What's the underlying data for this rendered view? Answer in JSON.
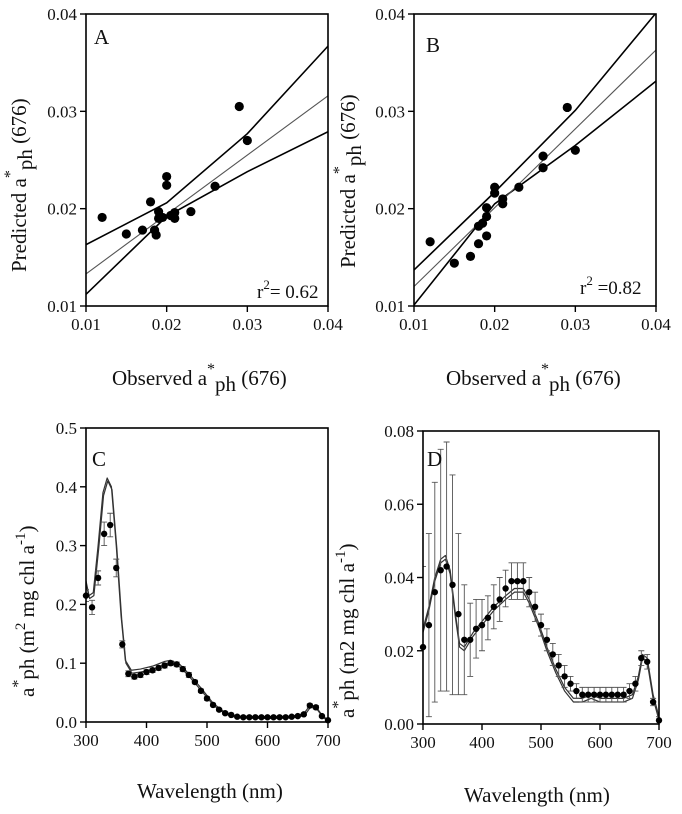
{
  "figure": {
    "colors": {
      "ink": "#000000",
      "regression": "#000000",
      "ci": "#000000",
      "fit_center": "#555555",
      "model_curve": "#333333"
    }
  },
  "chart_data": [
    {
      "panel": "A",
      "type": "scatter",
      "xlabel_parts": [
        "Observed a",
        "*",
        "ph",
        " (676)"
      ],
      "ylabel_parts": [
        "Predicted a",
        "*",
        "ph",
        " (676)"
      ],
      "xlim": [
        0.01,
        0.04
      ],
      "ylim": [
        0.01,
        0.04
      ],
      "x_ticks": [
        "0.01",
        "0.02",
        "0.03",
        "0.04"
      ],
      "y_ticks": [
        "0.01",
        "0.02",
        "0.03",
        "0.04"
      ],
      "annotation": {
        "base": "r",
        "sup": "2",
        "text": "= 0.62"
      },
      "points": [
        [
          0.012,
          0.0191
        ],
        [
          0.015,
          0.0174
        ],
        [
          0.017,
          0.0178
        ],
        [
          0.018,
          0.0207
        ],
        [
          0.0185,
          0.0178
        ],
        [
          0.0187,
          0.0173
        ],
        [
          0.019,
          0.0197
        ],
        [
          0.019,
          0.019
        ],
        [
          0.0195,
          0.0191
        ],
        [
          0.02,
          0.0224
        ],
        [
          0.02,
          0.0233
        ],
        [
          0.0205,
          0.0193
        ],
        [
          0.021,
          0.019
        ],
        [
          0.021,
          0.0196
        ],
        [
          0.023,
          0.0197
        ],
        [
          0.026,
          0.0223
        ],
        [
          0.029,
          0.0305
        ],
        [
          0.03,
          0.027
        ]
      ],
      "fit": {
        "slope": 0.61,
        "intercept": 0.0072
      },
      "ci_upper": [
        [
          0.01,
          0.0163
        ],
        [
          0.02,
          0.0206
        ],
        [
          0.03,
          0.0277
        ],
        [
          0.04,
          0.0367
        ]
      ],
      "ci_lower": [
        [
          0.01,
          0.0112
        ],
        [
          0.02,
          0.0192
        ],
        [
          0.03,
          0.0238
        ],
        [
          0.04,
          0.0279
        ]
      ]
    },
    {
      "panel": "B",
      "type": "scatter",
      "xlabel_parts": [
        "Observed a",
        "*",
        "ph",
        " (676)"
      ],
      "ylabel_parts": [
        "Predicted a",
        "*",
        "ph",
        " (676)"
      ],
      "xlim": [
        0.01,
        0.04
      ],
      "ylim": [
        0.01,
        0.04
      ],
      "x_ticks": [
        "0.01",
        "0.02",
        "0.03",
        "0.04"
      ],
      "y_ticks": [
        "0.01",
        "0.02",
        "0.03",
        "0.04"
      ],
      "annotation": {
        "base": "r",
        "sup": "2",
        "text": " =0.82"
      },
      "points": [
        [
          0.012,
          0.0166
        ],
        [
          0.015,
          0.0144
        ],
        [
          0.017,
          0.0151
        ],
        [
          0.018,
          0.0164
        ],
        [
          0.018,
          0.0182
        ],
        [
          0.0185,
          0.0185
        ],
        [
          0.019,
          0.0172
        ],
        [
          0.019,
          0.0192
        ],
        [
          0.019,
          0.0201
        ],
        [
          0.02,
          0.0216
        ],
        [
          0.02,
          0.0222
        ],
        [
          0.021,
          0.0205
        ],
        [
          0.021,
          0.021
        ],
        [
          0.023,
          0.0222
        ],
        [
          0.026,
          0.0242
        ],
        [
          0.026,
          0.0254
        ],
        [
          0.029,
          0.0304
        ],
        [
          0.03,
          0.026
        ]
      ],
      "fit": {
        "slope": 0.81,
        "intercept": 0.0039
      },
      "ci_upper": [
        [
          0.01,
          0.0137
        ],
        [
          0.02,
          0.0217
        ],
        [
          0.03,
          0.0301
        ],
        [
          0.04,
          0.0401
        ]
      ],
      "ci_lower": [
        [
          0.01,
          0.0101
        ],
        [
          0.02,
          0.0205
        ],
        [
          0.03,
          0.0265
        ],
        [
          0.04,
          0.0331
        ]
      ]
    },
    {
      "panel": "C",
      "type": "line",
      "xlabel": "Wavelength (nm)",
      "ylabel_parts": [
        "a",
        "*",
        "ph (m",
        "2",
        " mg chl a",
        "-1",
        ")"
      ],
      "xlim": [
        300,
        700
      ],
      "ylim": [
        0,
        0.5
      ],
      "x_ticks": [
        "300",
        "400",
        "500",
        "600",
        "700"
      ],
      "y_ticks": [
        "0.0",
        "0.1",
        "0.2",
        "0.3",
        "0.4",
        "0.5"
      ],
      "measured": [
        [
          300,
          0.215,
          0.01
        ],
        [
          310,
          0.195,
          0.012
        ],
        [
          320,
          0.245,
          0.012
        ],
        [
          330,
          0.32,
          0.02
        ],
        [
          340,
          0.335,
          0.02
        ],
        [
          350,
          0.262,
          0.015
        ],
        [
          360,
          0.132,
          0.006
        ],
        [
          370,
          0.082,
          0.005
        ],
        [
          380,
          0.077,
          0.004
        ],
        [
          390,
          0.08,
          0.004
        ],
        [
          400,
          0.085,
          0.004
        ],
        [
          410,
          0.088,
          0.004
        ],
        [
          420,
          0.092,
          0.004
        ],
        [
          430,
          0.096,
          0.004
        ],
        [
          440,
          0.1,
          0.004
        ],
        [
          450,
          0.098,
          0.004
        ],
        [
          460,
          0.09,
          0.004
        ],
        [
          470,
          0.08,
          0.004
        ],
        [
          480,
          0.068,
          0.003
        ],
        [
          490,
          0.053,
          0.003
        ],
        [
          500,
          0.04,
          0.003
        ],
        [
          510,
          0.029,
          0.002
        ],
        [
          520,
          0.021,
          0.002
        ],
        [
          530,
          0.015,
          0.002
        ],
        [
          540,
          0.012,
          0.001
        ],
        [
          550,
          0.009,
          0.001
        ],
        [
          560,
          0.008,
          0.001
        ],
        [
          570,
          0.008,
          0.001
        ],
        [
          580,
          0.008,
          0.001
        ],
        [
          590,
          0.008,
          0.001
        ],
        [
          600,
          0.008,
          0.001
        ],
        [
          610,
          0.008,
          0.001
        ],
        [
          620,
          0.008,
          0.001
        ],
        [
          630,
          0.008,
          0.001
        ],
        [
          640,
          0.009,
          0.001
        ],
        [
          650,
          0.01,
          0.001
        ],
        [
          660,
          0.013,
          0.002
        ],
        [
          670,
          0.028,
          0.003
        ],
        [
          680,
          0.025,
          0.003
        ],
        [
          690,
          0.01,
          0.002
        ],
        [
          700,
          0.003,
          0.001
        ]
      ],
      "model_upper": [
        [
          300,
          0.24
        ],
        [
          305,
          0.215
        ],
        [
          312,
          0.22
        ],
        [
          320,
          0.3
        ],
        [
          328,
          0.39
        ],
        [
          335,
          0.415
        ],
        [
          342,
          0.4
        ],
        [
          350,
          0.3
        ],
        [
          358,
          0.18
        ],
        [
          365,
          0.105
        ],
        [
          375,
          0.088
        ],
        [
          390,
          0.09
        ],
        [
          410,
          0.095
        ],
        [
          430,
          0.103
        ],
        [
          440,
          0.105
        ],
        [
          455,
          0.098
        ],
        [
          470,
          0.082
        ],
        [
          490,
          0.058
        ],
        [
          510,
          0.032
        ],
        [
          530,
          0.016
        ],
        [
          550,
          0.01
        ],
        [
          600,
          0.009
        ],
        [
          640,
          0.01
        ],
        [
          660,
          0.014
        ],
        [
          670,
          0.028
        ],
        [
          680,
          0.026
        ],
        [
          690,
          0.012
        ],
        [
          700,
          0.003
        ]
      ],
      "model_lower": [
        [
          300,
          0.235
        ],
        [
          306,
          0.21
        ],
        [
          313,
          0.215
        ],
        [
          321,
          0.295
        ],
        [
          329,
          0.385
        ],
        [
          336,
          0.41
        ],
        [
          343,
          0.395
        ],
        [
          351,
          0.295
        ],
        [
          359,
          0.175
        ],
        [
          366,
          0.1
        ],
        [
          376,
          0.083
        ],
        [
          391,
          0.085
        ],
        [
          411,
          0.09
        ],
        [
          431,
          0.098
        ],
        [
          441,
          0.1
        ],
        [
          456,
          0.093
        ],
        [
          471,
          0.077
        ],
        [
          491,
          0.053
        ],
        [
          511,
          0.028
        ],
        [
          531,
          0.013
        ],
        [
          551,
          0.007
        ],
        [
          601,
          0.006
        ],
        [
          641,
          0.007
        ],
        [
          661,
          0.011
        ],
        [
          671,
          0.025
        ],
        [
          681,
          0.023
        ],
        [
          691,
          0.009
        ],
        [
          700,
          0.001
        ]
      ]
    },
    {
      "panel": "D",
      "type": "line",
      "xlabel": "Wavelength (nm)",
      "ylabel_parts": [
        "a",
        "*",
        "ph (m2 mg chl a",
        "-1",
        ")"
      ],
      "xlim": [
        300,
        700
      ],
      "ylim": [
        0,
        0.08
      ],
      "x_ticks": [
        "300",
        "400",
        "500",
        "600",
        "700"
      ],
      "y_ticks": [
        "0.00",
        "0.02",
        "0.04",
        "0.06",
        "0.08"
      ],
      "measured": [
        [
          300,
          0.021,
          0.022
        ],
        [
          310,
          0.027,
          0.025
        ],
        [
          320,
          0.036,
          0.03
        ],
        [
          330,
          0.042,
          0.033
        ],
        [
          340,
          0.043,
          0.034
        ],
        [
          350,
          0.038,
          0.03
        ],
        [
          360,
          0.03,
          0.022
        ],
        [
          370,
          0.023,
          0.015
        ],
        [
          380,
          0.023,
          0.01
        ],
        [
          390,
          0.026,
          0.008
        ],
        [
          400,
          0.027,
          0.007
        ],
        [
          410,
          0.029,
          0.006
        ],
        [
          420,
          0.032,
          0.006
        ],
        [
          430,
          0.034,
          0.006
        ],
        [
          440,
          0.037,
          0.005
        ],
        [
          450,
          0.039,
          0.005
        ],
        [
          460,
          0.039,
          0.005
        ],
        [
          470,
          0.039,
          0.005
        ],
        [
          480,
          0.036,
          0.004
        ],
        [
          490,
          0.032,
          0.004
        ],
        [
          500,
          0.027,
          0.003
        ],
        [
          510,
          0.023,
          0.003
        ],
        [
          520,
          0.019,
          0.003
        ],
        [
          530,
          0.016,
          0.003
        ],
        [
          540,
          0.013,
          0.003
        ],
        [
          550,
          0.011,
          0.002
        ],
        [
          560,
          0.009,
          0.002
        ],
        [
          570,
          0.008,
          0.002
        ],
        [
          580,
          0.008,
          0.002
        ],
        [
          590,
          0.008,
          0.002
        ],
        [
          600,
          0.008,
          0.002
        ],
        [
          610,
          0.008,
          0.002
        ],
        [
          620,
          0.008,
          0.002
        ],
        [
          630,
          0.008,
          0.002
        ],
        [
          640,
          0.008,
          0.002
        ],
        [
          650,
          0.009,
          0.002
        ],
        [
          660,
          0.011,
          0.002
        ],
        [
          670,
          0.018,
          0.002
        ],
        [
          680,
          0.017,
          0.002
        ],
        [
          690,
          0.006,
          0.001
        ],
        [
          700,
          0.001,
          0.001
        ]
      ],
      "model_upper": [
        [
          300,
          0.026
        ],
        [
          310,
          0.032
        ],
        [
          320,
          0.04
        ],
        [
          330,
          0.045
        ],
        [
          338,
          0.046
        ],
        [
          346,
          0.042
        ],
        [
          355,
          0.03
        ],
        [
          362,
          0.022
        ],
        [
          370,
          0.021
        ],
        [
          385,
          0.025
        ],
        [
          400,
          0.028
        ],
        [
          420,
          0.032
        ],
        [
          440,
          0.035
        ],
        [
          455,
          0.037
        ],
        [
          470,
          0.037
        ],
        [
          480,
          0.034
        ],
        [
          495,
          0.028
        ],
        [
          510,
          0.021
        ],
        [
          525,
          0.015
        ],
        [
          540,
          0.01
        ],
        [
          555,
          0.007
        ],
        [
          570,
          0.007
        ],
        [
          585,
          0.008
        ],
        [
          600,
          0.007
        ],
        [
          620,
          0.007
        ],
        [
          640,
          0.007
        ],
        [
          655,
          0.008
        ],
        [
          665,
          0.013
        ],
        [
          672,
          0.019
        ],
        [
          680,
          0.018
        ],
        [
          690,
          0.008
        ],
        [
          700,
          0.002
        ]
      ],
      "model_lower": [
        [
          300,
          0.025
        ],
        [
          310,
          0.031
        ],
        [
          320,
          0.039
        ],
        [
          330,
          0.044
        ],
        [
          338,
          0.045
        ],
        [
          346,
          0.041
        ],
        [
          355,
          0.029
        ],
        [
          362,
          0.021
        ],
        [
          370,
          0.02
        ],
        [
          385,
          0.024
        ],
        [
          400,
          0.027
        ],
        [
          420,
          0.031
        ],
        [
          440,
          0.034
        ],
        [
          455,
          0.036
        ],
        [
          470,
          0.036
        ],
        [
          480,
          0.033
        ],
        [
          495,
          0.027
        ],
        [
          510,
          0.02
        ],
        [
          525,
          0.014
        ],
        [
          540,
          0.009
        ],
        [
          555,
          0.006
        ],
        [
          570,
          0.006
        ],
        [
          585,
          0.007
        ],
        [
          600,
          0.006
        ],
        [
          620,
          0.006
        ],
        [
          640,
          0.006
        ],
        [
          655,
          0.007
        ],
        [
          665,
          0.012
        ],
        [
          672,
          0.018
        ],
        [
          680,
          0.017
        ],
        [
          690,
          0.007
        ],
        [
          700,
          0.001
        ]
      ]
    }
  ]
}
